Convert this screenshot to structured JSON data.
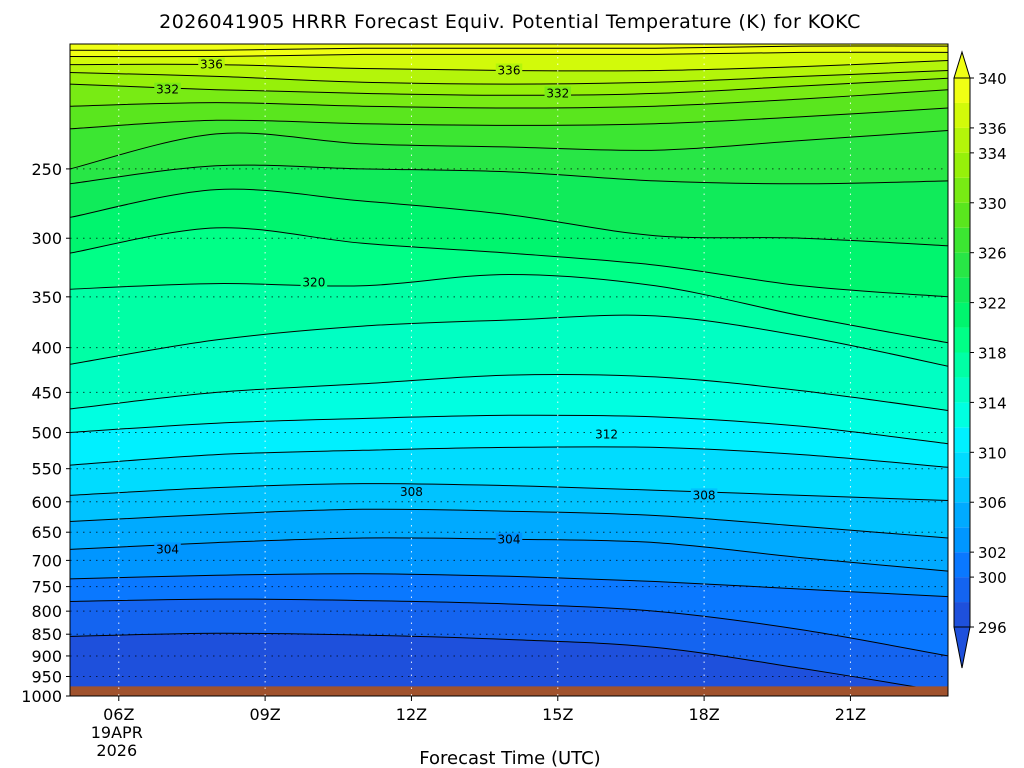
{
  "chart_data": {
    "type": "contour",
    "title": "2026041905 HRRR Forecast Equiv. Potential Temperature (K) for KOKC",
    "xlabel": "Forecast Time (UTC)",
    "ylabel": "",
    "y_axis": {
      "scale": "pressure (log, inverted)",
      "range": [
        1000,
        180
      ],
      "ticks": [
        250,
        300,
        350,
        400,
        450,
        500,
        550,
        600,
        650,
        700,
        750,
        800,
        850,
        900,
        950,
        1000
      ]
    },
    "x_axis": {
      "range_hours": [
        5,
        23
      ],
      "ticks": [
        {
          "hour": 6,
          "label": "06Z",
          "sublabels": [
            "19APR",
            "2026"
          ]
        },
        {
          "hour": 9,
          "label": "09Z"
        },
        {
          "hour": 12,
          "label": "12Z"
        },
        {
          "hour": 15,
          "label": "15Z"
        },
        {
          "hour": 18,
          "label": "18Z"
        },
        {
          "hour": 21,
          "label": "21Z"
        }
      ]
    },
    "grid": true,
    "surface_fill_color": "#a0522d",
    "colorbar": {
      "placement": "right",
      "levels": [
        296,
        298,
        300,
        302,
        304,
        306,
        308,
        310,
        312,
        314,
        316,
        318,
        320,
        322,
        324,
        326,
        328,
        330,
        332,
        334,
        336,
        338,
        340
      ],
      "tick_labels": [
        "296",
        "300",
        "302",
        "306",
        "310",
        "314",
        "318",
        "322",
        "326",
        "330",
        "334",
        "336",
        "340"
      ],
      "colors": [
        "#1e50dc",
        "#1464f0",
        "#0a78ff",
        "#0096ff",
        "#00aaff",
        "#00c3ff",
        "#00dcff",
        "#00f0ff",
        "#00ffe1",
        "#00ffc3",
        "#00ffa5",
        "#00ff87",
        "#00f56e",
        "#10eb5a",
        "#28e646",
        "#3ce632",
        "#5ae61e",
        "#78eb14",
        "#96f00a",
        "#b4f50a",
        "#d2fa0a",
        "#f0ff14"
      ]
    },
    "contour_labels": [
      {
        "value": "336",
        "hour": 7.9,
        "pressure": 190
      },
      {
        "value": "336",
        "hour": 14.0,
        "pressure": 193
      },
      {
        "value": "332",
        "hour": 7.0,
        "pressure": 203
      },
      {
        "value": "332",
        "hour": 15.0,
        "pressure": 205
      },
      {
        "value": "320",
        "hour": 10.0,
        "pressure": 337
      },
      {
        "value": "312",
        "hour": 16.0,
        "pressure": 503
      },
      {
        "value": "308",
        "hour": 12.0,
        "pressure": 585
      },
      {
        "value": "308",
        "hour": 18.0,
        "pressure": 590
      },
      {
        "value": "304",
        "hour": 7.0,
        "pressure": 680
      },
      {
        "value": "304",
        "hour": 14.0,
        "pressure": 663
      }
    ],
    "series": [
      {
        "value": 340,
        "pressures": [
          183,
          183,
          182,
          182,
          182,
          181,
          181
        ]
      },
      {
        "value": 338,
        "pressures": [
          186,
          186,
          185,
          185,
          185,
          184,
          184
        ]
      },
      {
        "value": 336,
        "pressures": [
          190,
          190,
          192,
          193,
          193,
          191,
          188
        ]
      },
      {
        "value": 334,
        "pressures": [
          194,
          196,
          199,
          200,
          199,
          196,
          193
        ]
      },
      {
        "value": 332,
        "pressures": [
          200,
          203,
          205,
          206,
          205,
          201,
          197
        ]
      },
      {
        "value": 330,
        "pressures": [
          212,
          210,
          212,
          213,
          212,
          208,
          203
        ]
      },
      {
        "value": 328,
        "pressures": [
          225,
          220,
          222,
          223,
          222,
          218,
          213
        ]
      },
      {
        "value": 326,
        "pressures": [
          250,
          228,
          234,
          236,
          238,
          232,
          226
        ]
      },
      {
        "value": 324,
        "pressures": [
          260,
          248,
          250,
          252,
          258,
          260,
          258
        ]
      },
      {
        "value": 322,
        "pressures": [
          284,
          264,
          272,
          282,
          298,
          300,
          306
        ]
      },
      {
        "value": 320,
        "pressures": [
          312,
          292,
          304,
          312,
          322,
          340,
          350
        ]
      },
      {
        "value": 318,
        "pressures": [
          343,
          338,
          340,
          330,
          340,
          368,
          395
        ]
      },
      {
        "value": 316,
        "pressures": [
          418,
          392,
          378,
          372,
          368,
          388,
          420
        ]
      },
      {
        "value": 314,
        "pressures": [
          470,
          450,
          440,
          430,
          432,
          448,
          472
        ]
      },
      {
        "value": 312,
        "pressures": [
          500,
          488,
          482,
          478,
          480,
          492,
          515
        ]
      },
      {
        "value": 310,
        "pressures": [
          545,
          530,
          524,
          520,
          520,
          530,
          548
        ]
      },
      {
        "value": 308,
        "pressures": [
          590,
          578,
          572,
          575,
          582,
          590,
          598
        ]
      },
      {
        "value": 306,
        "pressures": [
          632,
          620,
          612,
          615,
          622,
          640,
          660
        ]
      },
      {
        "value": 304,
        "pressures": [
          680,
          668,
          660,
          662,
          668,
          695,
          720
        ]
      },
      {
        "value": 302,
        "pressures": [
          735,
          728,
          725,
          730,
          740,
          755,
          770
        ]
      },
      {
        "value": 300,
        "pressures": [
          780,
          775,
          778,
          785,
          800,
          840,
          900
        ]
      },
      {
        "value": 298,
        "pressures": [
          855,
          848,
          852,
          862,
          880,
          930,
          990
        ]
      }
    ]
  }
}
